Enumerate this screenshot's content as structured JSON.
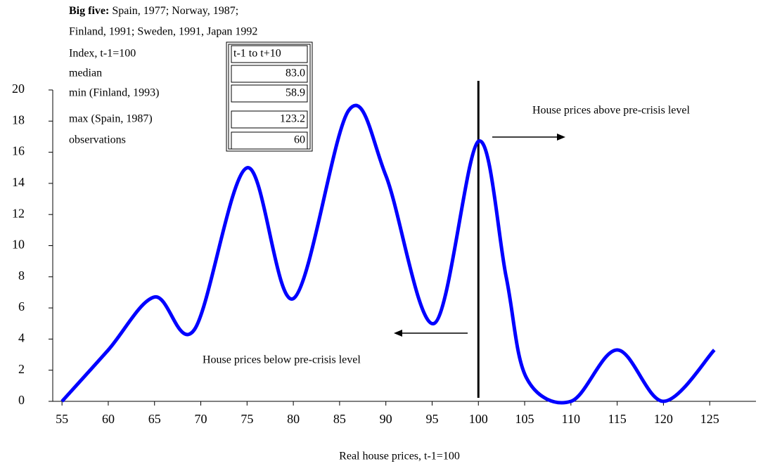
{
  "chart_data": {
    "type": "line",
    "note": {
      "lead": "Big five:",
      "lines": [
        "Spain, 1977; Norway, 1987;",
        "Finland, 1991; Sweden, 1991, Japan 1992"
      ]
    },
    "table": {
      "header": [
        "Index, t-1=100",
        "t-1 to t+10"
      ],
      "rows": [
        [
          "median",
          "83.0"
        ],
        [
          "min (Finland, 1993)",
          "58.9"
        ],
        [
          "max (Spain, 1987)",
          "123.2"
        ],
        [
          "observations",
          "60"
        ]
      ]
    },
    "x_label": "Real house prices, t-1=100",
    "annotations": [
      "House prices above pre-crisis level",
      "House prices below pre-crisis level"
    ],
    "vline": 100,
    "series": [
      {
        "color": "#0000ff",
        "x": [
          55,
          60,
          65,
          69.3,
          75,
          80,
          86,
          90,
          95.2,
          100,
          103,
          105.2,
          110,
          115,
          120,
          125.5
        ],
        "values": [
          0,
          3.3,
          6.7,
          4.6,
          15.0,
          6.6,
          18.7,
          14.5,
          5.0,
          16.7,
          8,
          1.5,
          0,
          3.3,
          0,
          3.3
        ]
      }
    ],
    "xlim": [
      54,
      130
    ],
    "ylim": [
      0,
      20
    ],
    "xticks": [
      55,
      60,
      65,
      70,
      75,
      80,
      85,
      90,
      95,
      100,
      105,
      110,
      115,
      120,
      125
    ],
    "yticks": [
      0,
      2,
      4,
      6,
      8,
      10,
      12,
      14,
      16,
      18,
      20
    ]
  }
}
